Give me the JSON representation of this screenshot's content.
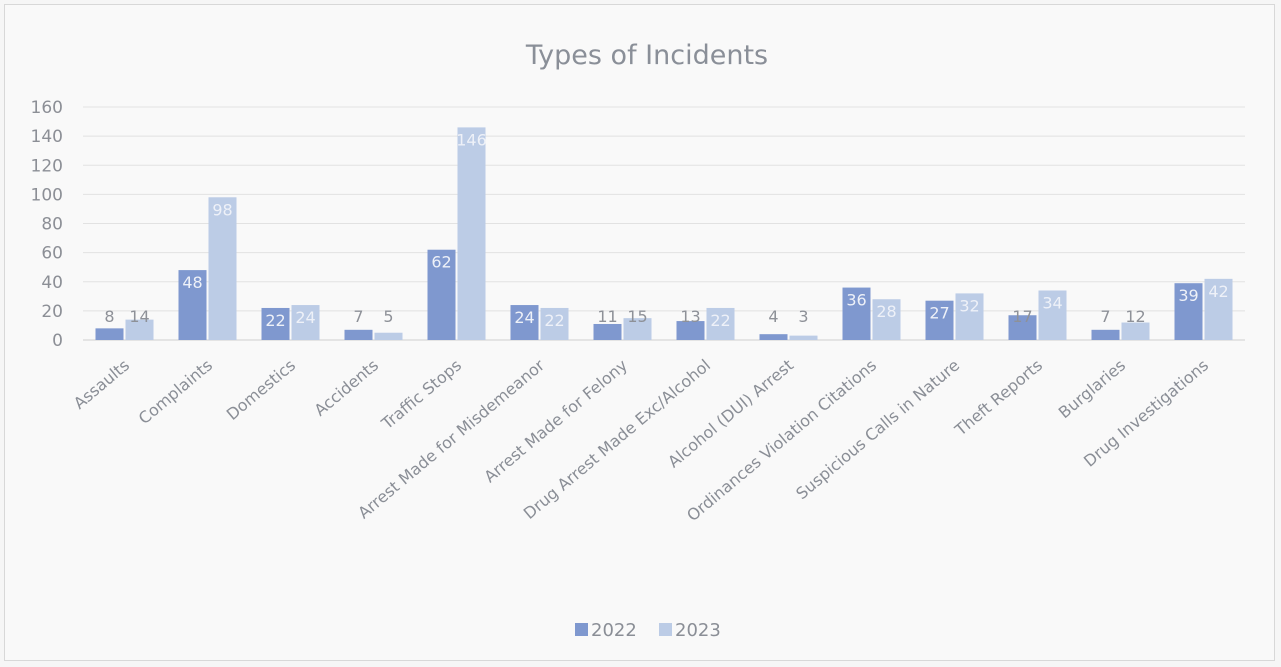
{
  "chart_data": {
    "type": "bar",
    "title": "Types of Incidents",
    "xlabel": "",
    "ylabel": "",
    "ylim": [
      0,
      160
    ],
    "yticks": [
      0,
      20,
      40,
      60,
      80,
      100,
      120,
      140,
      160
    ],
    "grid": true,
    "legend_position": "bottom",
    "categories": [
      "Assaults",
      "Complaints",
      "Domestics",
      "Accidents",
      "Traffic Stops",
      "Arrest Made for Misdemeanor",
      "Arrest Made for Felony",
      "Drug Arrest Made Exc/Alcohol",
      "Alcohol (DUI) Arrest",
      "Ordinances Violation Citations",
      "Suspicious Calls in Nature",
      "Theft Reports",
      "Burglaries",
      "Drug Investigations"
    ],
    "series": [
      {
        "name": "2022",
        "color": "#7f98cf",
        "values": [
          8,
          48,
          22,
          7,
          62,
          24,
          11,
          13,
          4,
          36,
          27,
          17,
          7,
          39
        ]
      },
      {
        "name": "2023",
        "color": "#bccce6",
        "values": [
          14,
          98,
          24,
          5,
          146,
          22,
          15,
          22,
          3,
          28,
          32,
          34,
          12,
          42
        ]
      }
    ]
  }
}
